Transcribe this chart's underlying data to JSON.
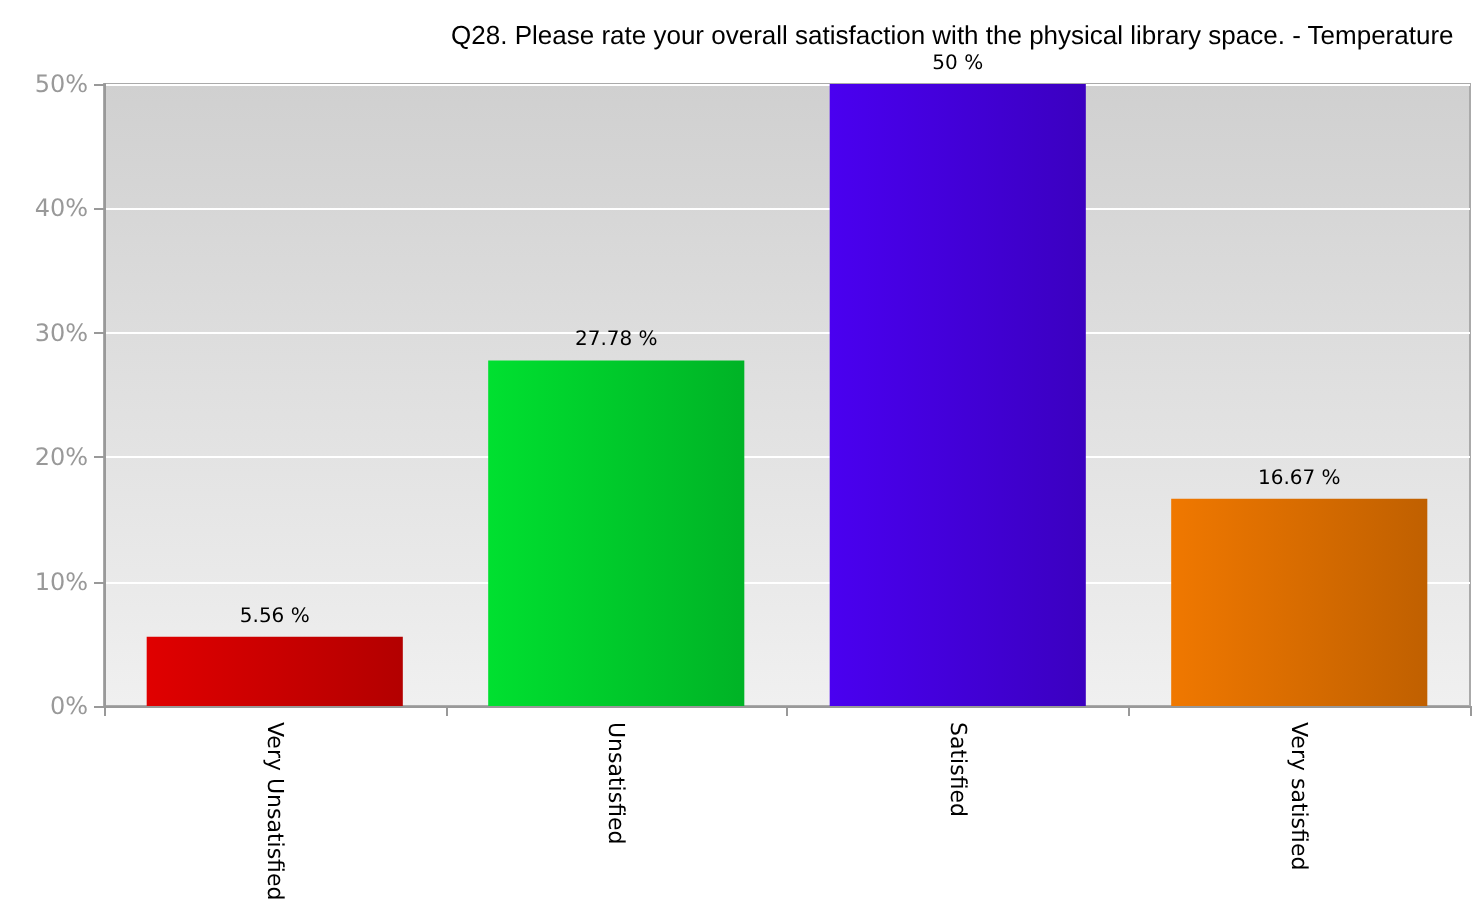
{
  "chart_data": {
    "type": "bar",
    "title": "Q28. Please rate your overall satisfaction with the physical library space. - Temperature",
    "categories": [
      "Very Unsatisfied",
      "Unsatisfied",
      "Satisfied",
      "Very satisfied"
    ],
    "values": [
      5.56,
      27.78,
      50,
      16.67
    ],
    "colors": [
      "#e00000",
      "#00e030",
      "#4a00f0",
      "#f07800"
    ],
    "value_labels": [
      "5.56 %",
      "27.78 %",
      "50 %",
      "16.67 %"
    ],
    "ylim": [
      0,
      50
    ],
    "yticks": [
      {
        "value": 0,
        "label": "0%"
      },
      {
        "value": 10,
        "label": "10%"
      },
      {
        "value": 20,
        "label": "20%"
      },
      {
        "value": 30,
        "label": "30%"
      },
      {
        "value": 40,
        "label": "40%"
      },
      {
        "value": 50,
        "label": "50%"
      }
    ],
    "grid": "y"
  }
}
